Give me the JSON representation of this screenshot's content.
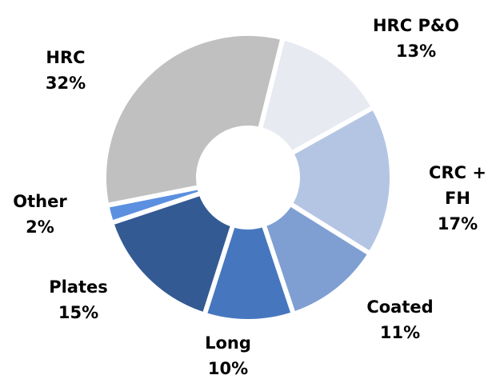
{
  "chart_data": {
    "type": "donut",
    "categories": [
      "HRC P&O",
      "CRC + FH",
      "Coated",
      "Long",
      "Plates",
      "Other",
      "HRC"
    ],
    "values": [
      13,
      17,
      11,
      10,
      15,
      2,
      32
    ],
    "value_labels": [
      "13%",
      "17%",
      "11%",
      "10%",
      "15%",
      "2%",
      "32%"
    ],
    "colors": [
      "#e8eaf2",
      "#b4c5e4",
      "#7f9fd3",
      "#4677be",
      "#335a93",
      "#5b8fe0",
      "#c0c0c0"
    ]
  }
}
